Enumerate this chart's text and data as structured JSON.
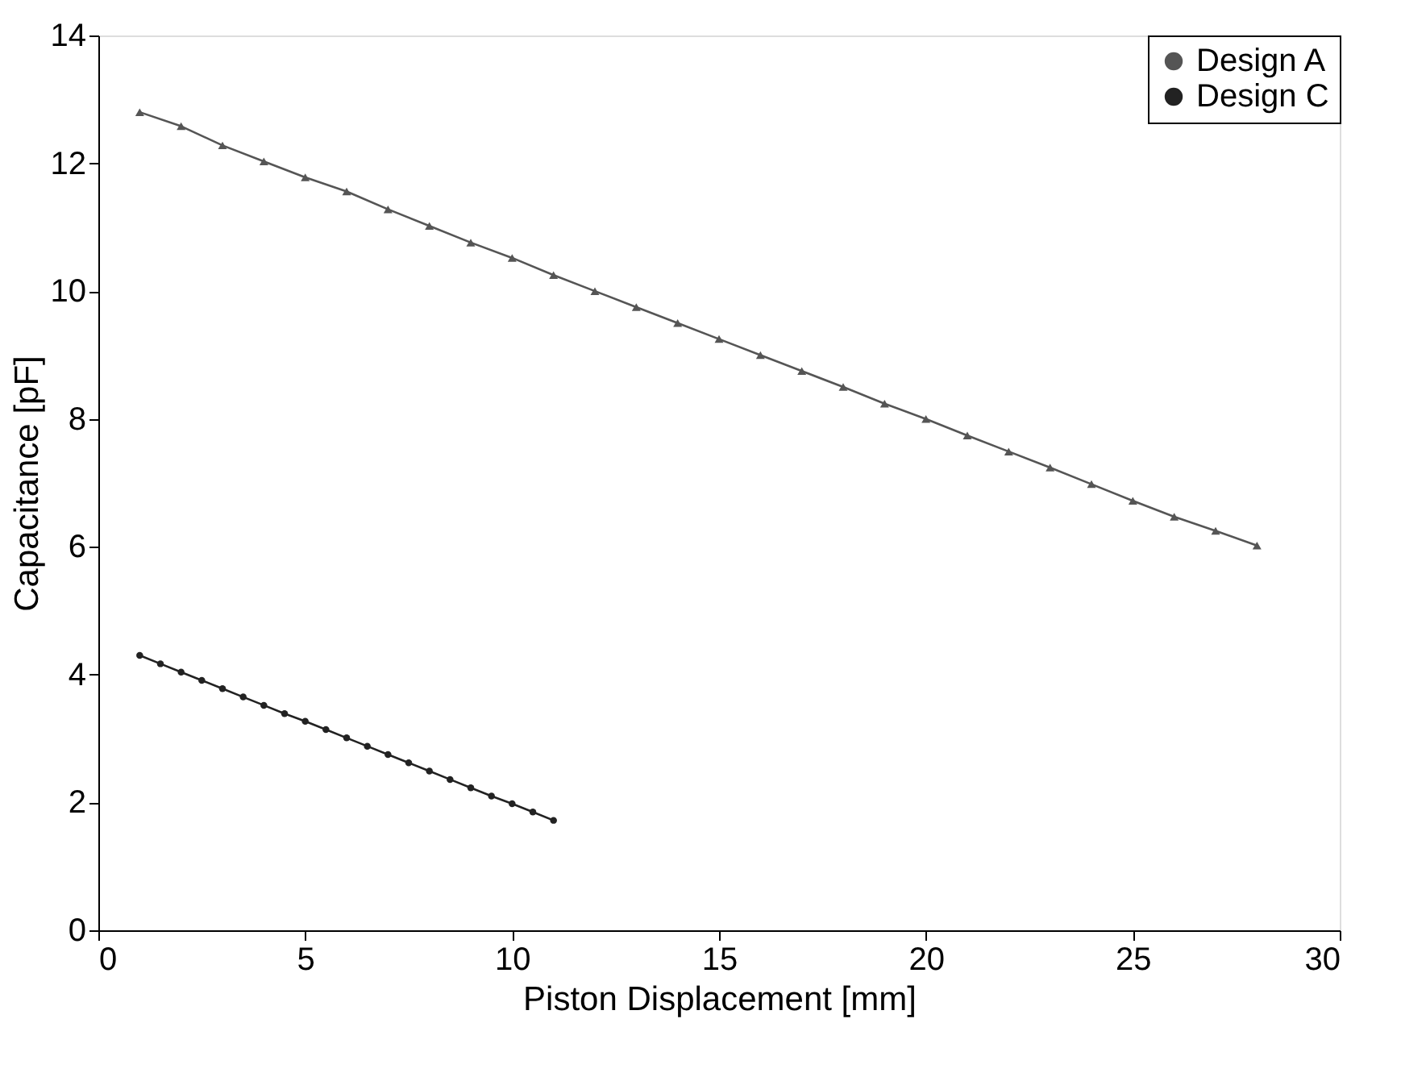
{
  "chart_data": {
    "type": "line",
    "xlabel": "Piston Displacement [mm]",
    "ylabel": "Capacitance [pF]",
    "xlim": [
      0,
      30
    ],
    "xticks": [
      0,
      5,
      10,
      15,
      20,
      25,
      30
    ],
    "ylim": [
      0,
      14
    ],
    "yticks": [
      0,
      2,
      4,
      6,
      8,
      10,
      12,
      14
    ],
    "grid": false,
    "legend": "top right",
    "line_style": "solid",
    "series": [
      {
        "name": "Design A",
        "color": "#555555",
        "marker": "triangle",
        "x": [
          1,
          2,
          3,
          4,
          5,
          6,
          7,
          8,
          9,
          10,
          11,
          12,
          13,
          14,
          15,
          16,
          17,
          18,
          19,
          20,
          21,
          22,
          23,
          24,
          25,
          26,
          27,
          28
        ],
        "values": [
          12.8,
          12.58,
          12.28,
          12.03,
          11.78,
          11.56,
          11.28,
          11.02,
          10.76,
          10.52,
          10.25,
          10.0,
          9.75,
          9.5,
          9.25,
          9.0,
          8.75,
          8.5,
          8.24,
          8.0,
          7.74,
          7.49,
          7.24,
          6.98,
          6.72,
          6.47,
          6.25,
          6.02
        ]
      },
      {
        "name": "Design C",
        "color": "#222222",
        "marker": "circle",
        "x": [
          1,
          1.5,
          2,
          2.5,
          3,
          3.5,
          4,
          4.5,
          5,
          5.5,
          6,
          6.5,
          7,
          7.5,
          8,
          8.5,
          9,
          9.5,
          10,
          10.5,
          11
        ],
        "values": [
          4.3,
          4.17,
          4.04,
          3.91,
          3.78,
          3.65,
          3.52,
          3.39,
          3.27,
          3.14,
          3.01,
          2.88,
          2.75,
          2.62,
          2.49,
          2.36,
          2.23,
          2.1,
          1.98,
          1.85,
          1.72
        ]
      }
    ]
  }
}
